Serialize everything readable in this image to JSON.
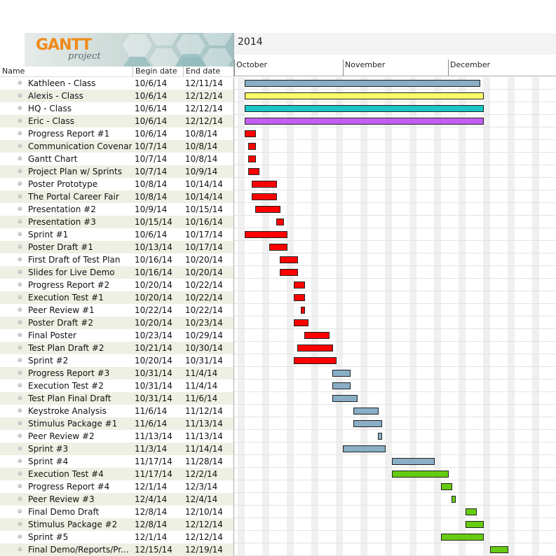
{
  "header": {
    "logo_text": "GANTT",
    "logo_sub": "project",
    "columns": {
      "name": "Name",
      "begin": "Begin date",
      "end": "End date"
    },
    "year": "2014",
    "months": [
      "October",
      "November",
      "December"
    ]
  },
  "colors": {
    "class_blue": "#89aec6",
    "yellow": "#fbfb6a",
    "cyan": "#1ac6c6",
    "purple": "#c25ef2",
    "red": "#ff0000",
    "steel": "#89aec6",
    "green": "#66cc11",
    "weekend": "#f0f0f0",
    "row_alt": "#eff0e4"
  },
  "tasks": [
    {
      "name": "Kathleen - Class",
      "begin": "10/6/14",
      "end": "12/11/14",
      "color": "class_blue"
    },
    {
      "name": "Alexis - Class",
      "begin": "10/6/14",
      "end": "12/12/14",
      "color": "yellow"
    },
    {
      "name": "HQ - Class",
      "begin": "10/6/14",
      "end": "12/12/14",
      "color": "cyan"
    },
    {
      "name": "Eric - Class",
      "begin": "10/6/14",
      "end": "12/12/14",
      "color": "purple"
    },
    {
      "name": "Progress Report #1",
      "begin": "10/6/14",
      "end": "10/8/14",
      "color": "red"
    },
    {
      "name": "Communication Covenant",
      "begin": "10/7/14",
      "end": "10/8/14",
      "color": "red"
    },
    {
      "name": "Gantt Chart",
      "begin": "10/7/14",
      "end": "10/8/14",
      "color": "red"
    },
    {
      "name": "Project Plan w/ Sprints",
      "begin": "10/7/14",
      "end": "10/9/14",
      "color": "red"
    },
    {
      "name": "Poster Prototype",
      "begin": "10/8/14",
      "end": "10/14/14",
      "color": "red"
    },
    {
      "name": "The Portal Career Fair",
      "begin": "10/8/14",
      "end": "10/14/14",
      "color": "red"
    },
    {
      "name": "Presentation #2",
      "begin": "10/9/14",
      "end": "10/15/14",
      "color": "red"
    },
    {
      "name": "Presentation #3",
      "begin": "10/15/14",
      "end": "10/16/14",
      "color": "red"
    },
    {
      "name": "Sprint #1",
      "begin": "10/6/14",
      "end": "10/17/14",
      "color": "red"
    },
    {
      "name": "Poster Draft #1",
      "begin": "10/13/14",
      "end": "10/17/14",
      "color": "red"
    },
    {
      "name": "First Draft of Test Plan",
      "begin": "10/16/14",
      "end": "10/20/14",
      "color": "red"
    },
    {
      "name": "Slides for Live Demo",
      "begin": "10/16/14",
      "end": "10/20/14",
      "color": "red"
    },
    {
      "name": "Progress Report #2",
      "begin": "10/20/14",
      "end": "10/22/14",
      "color": "red"
    },
    {
      "name": "Execution Test #1",
      "begin": "10/20/14",
      "end": "10/22/14",
      "color": "red"
    },
    {
      "name": "Peer Review #1",
      "begin": "10/22/14",
      "end": "10/22/14",
      "color": "red"
    },
    {
      "name": "Poster Draft #2",
      "begin": "10/20/14",
      "end": "10/23/14",
      "color": "red"
    },
    {
      "name": "Final Poster",
      "begin": "10/23/14",
      "end": "10/29/14",
      "color": "red"
    },
    {
      "name": "Test Plan Draft #2",
      "begin": "10/21/14",
      "end": "10/30/14",
      "color": "red"
    },
    {
      "name": "Sprint #2",
      "begin": "10/20/14",
      "end": "10/31/14",
      "color": "red"
    },
    {
      "name": "Progress Report #3",
      "begin": "10/31/14",
      "end": "11/4/14",
      "color": "steel"
    },
    {
      "name": "Execution Test #2",
      "begin": "10/31/14",
      "end": "11/4/14",
      "color": "steel"
    },
    {
      "name": "Test Plan Final Draft",
      "begin": "10/31/14",
      "end": "11/6/14",
      "color": "steel"
    },
    {
      "name": "Keystroke Analysis",
      "begin": "11/6/14",
      "end": "11/12/14",
      "color": "steel"
    },
    {
      "name": "Stimulus Package #1",
      "begin": "11/6/14",
      "end": "11/13/14",
      "color": "steel"
    },
    {
      "name": "Peer Review #2",
      "begin": "11/13/14",
      "end": "11/13/14",
      "color": "steel"
    },
    {
      "name": "Sprint #3",
      "begin": "11/3/14",
      "end": "11/14/14",
      "color": "steel"
    },
    {
      "name": "Sprint #4",
      "begin": "11/17/14",
      "end": "11/28/14",
      "color": "steel"
    },
    {
      "name": "Execution Test #4",
      "begin": "11/17/14",
      "end": "12/2/14",
      "color": "green"
    },
    {
      "name": "Progress Report #4",
      "begin": "12/1/14",
      "end": "12/3/14",
      "color": "green"
    },
    {
      "name": "Peer Review #3",
      "begin": "12/4/14",
      "end": "12/4/14",
      "color": "green"
    },
    {
      "name": "Final Demo Draft",
      "begin": "12/8/14",
      "end": "12/10/14",
      "color": "green"
    },
    {
      "name": "Stimulus Package #2",
      "begin": "12/8/14",
      "end": "12/12/14",
      "color": "green"
    },
    {
      "name": "Sprint #5",
      "begin": "12/1/14",
      "end": "12/12/14",
      "color": "green"
    },
    {
      "name": "Final Demo/Reports/Pr...",
      "begin": "12/15/14",
      "end": "12/19/14",
      "color": "green"
    }
  ]
}
